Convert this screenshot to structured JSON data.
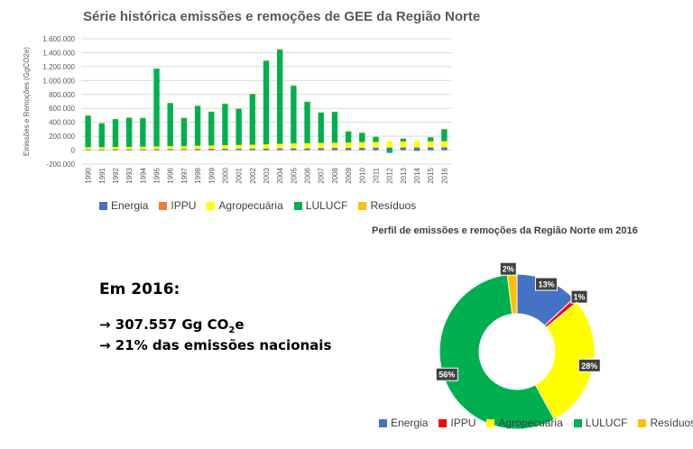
{
  "chart_data": [
    {
      "type": "bar",
      "stacked": true,
      "title": "Série histórica emissões e remoções de GEE da Região Norte",
      "ylabel": "Emissões e Remoções (GgCO2e)",
      "xlabel": "",
      "ylim": [
        -200000,
        1600000
      ],
      "yticks": [
        "-200.000",
        "0",
        "200.000",
        "400.000",
        "600.000",
        "800.000",
        "1.000.000",
        "1.200.000",
        "1.400.000",
        "1.600.000"
      ],
      "grid": true,
      "legend": "bottom",
      "categories": [
        "1990",
        "1991",
        "1992",
        "1993",
        "1994",
        "1995",
        "1996",
        "1997",
        "1998",
        "1999",
        "2000",
        "2001",
        "2002",
        "2003",
        "2004",
        "2005",
        "2006",
        "2007",
        "2008",
        "2009",
        "2010",
        "2011",
        "2012",
        "2013",
        "2014",
        "2015",
        "2016"
      ],
      "series": [
        {
          "name": "Energia",
          "color": "#4472C4",
          "values": [
            10000,
            10000,
            12000,
            12000,
            13000,
            14000,
            15000,
            15000,
            16000,
            18000,
            20000,
            20000,
            21000,
            22000,
            24000,
            25000,
            26000,
            28000,
            29000,
            30000,
            33000,
            35000,
            36000,
            37000,
            38000,
            39000,
            40000
          ]
        },
        {
          "name": "IPPU",
          "color": "#ED7D31",
          "values": [
            2000,
            2000,
            2000,
            2000,
            2000,
            2000,
            2000,
            2000,
            2000,
            2000,
            2000,
            2000,
            2000,
            2000,
            2000,
            3000,
            3000,
            3000,
            3000,
            3000,
            3000,
            3000,
            3000,
            3000,
            3000,
            3000,
            3000
          ]
        },
        {
          "name": "Agropecuária",
          "color": "#FFFF00",
          "values": [
            30000,
            31000,
            32000,
            33000,
            35000,
            38000,
            40000,
            42000,
            45000,
            47000,
            50000,
            52000,
            55000,
            60000,
            65000,
            68000,
            70000,
            72000,
            74000,
            76000,
            78000,
            80000,
            82000,
            83000,
            84000,
            85000,
            86000
          ]
        },
        {
          "name": "LULUCF",
          "color": "#00B050",
          "values": [
            455000,
            344000,
            401000,
            420000,
            412000,
            1118000,
            620000,
            403000,
            573000,
            484000,
            594000,
            522000,
            728000,
            1202000,
            1355000,
            830000,
            596000,
            437000,
            444000,
            161000,
            136000,
            72000,
            -40000,
            41000,
            -10000,
            57000,
            172000
          ]
        },
        {
          "name": "Resíduos",
          "color": "#FFC000",
          "values": [
            3000,
            3000,
            3000,
            3000,
            3000,
            3000,
            3000,
            3000,
            4000,
            4000,
            4000,
            4000,
            4000,
            4000,
            4000,
            4000,
            5000,
            5000,
            5000,
            5000,
            5000,
            5000,
            5000,
            6000,
            6000,
            6000,
            6000
          ]
        }
      ]
    },
    {
      "type": "pie",
      "donut": true,
      "title": "Perfil de emissões e remoções da Região Norte em 2016",
      "legend": "bottom",
      "slices": [
        {
          "name": "Energia",
          "value": 13,
          "label": "13%",
          "color": "#4472C4"
        },
        {
          "name": "IPPU",
          "value": 1,
          "label": "1%",
          "color": "#FF0000"
        },
        {
          "name": "Agropecuária",
          "value": 28,
          "label": "28%",
          "color": "#FFFF00"
        },
        {
          "name": "LULUCF",
          "value": 56,
          "label": "56%",
          "color": "#00B050"
        },
        {
          "name": "Resíduos",
          "value": 2,
          "label": "2%",
          "color": "#FFC000"
        }
      ]
    }
  ],
  "summary": {
    "heading": "Em 2016:",
    "line1": "→ 307.557 Gg CO",
    "line1_sub": "2",
    "line1_end": "e",
    "line2": "→ 21% das emissões nacionais"
  }
}
